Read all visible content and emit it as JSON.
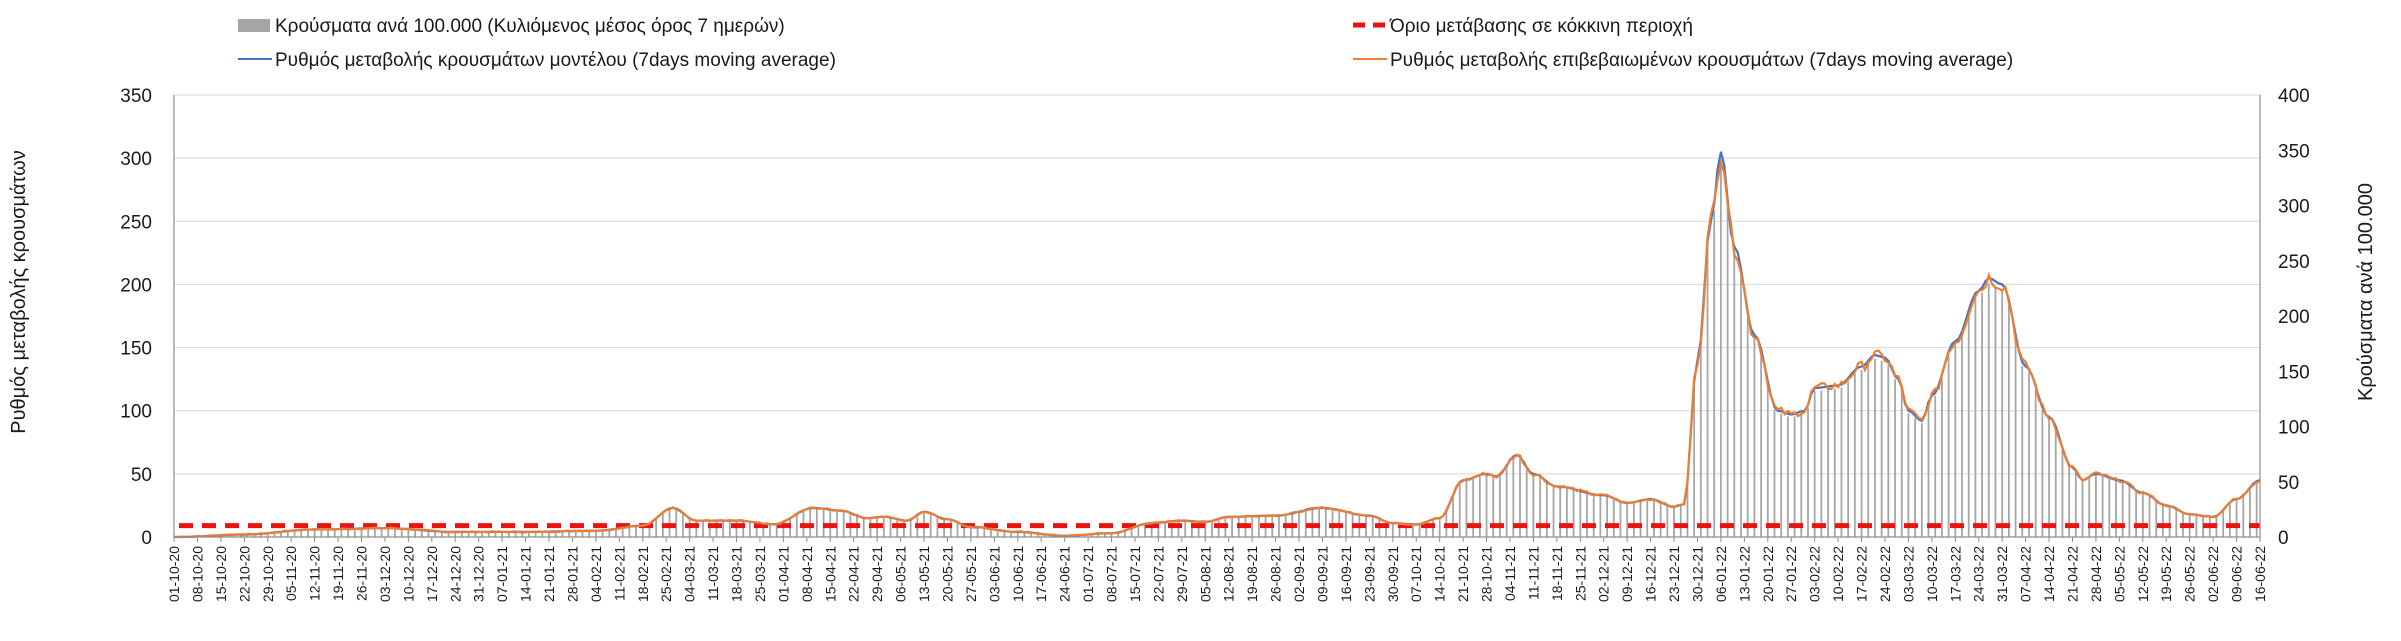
{
  "chart_data": {
    "type": "bar+line",
    "legend": {
      "bars": "Κρούσματα ανά 100.000 (Κυλιόμενος μέσος όρος 7 ημερών)",
      "threshold": "Όριο μετάβασης σε κόκκινη περιοχή",
      "model_line": "Ρυθμός μεταβολής κρουσμάτων μοντέλου (7days moving average)",
      "confirmed_line": "Ρυθμός μεταβολής επιβεβαιωμένων κρουσμάτων (7days moving average)"
    },
    "y_left_label": "Ρυθμός μεταβολής κρουσμάτων",
    "y_right_label": "Κρούσματα ανά 100.000",
    "y_left_ticks": [
      "0",
      "50",
      "100",
      "150",
      "200",
      "250",
      "300",
      "350"
    ],
    "y_right_ticks": [
      "0",
      "50",
      "100",
      "150",
      "200",
      "250",
      "300",
      "350",
      "400"
    ],
    "y_left_range": [
      0,
      350
    ],
    "y_right_range": [
      0,
      400
    ],
    "x_start_date": "01-10-20",
    "x_end_date": "16-06-22",
    "x_tick_step_days": 7,
    "threshold_value_left_axis": 9,
    "colors": {
      "bars": "#a6a6a6",
      "threshold": "#ee1111",
      "model_line": "#4472c4",
      "confirmed_line": "#ed7d31",
      "grid": "#d9d9d9"
    },
    "series_left_axis_keypoints": [
      [
        "01-10-20",
        0
      ],
      [
        "22-10-20",
        2
      ],
      [
        "12-11-20",
        6
      ],
      [
        "03-12-20",
        7
      ],
      [
        "24-12-20",
        4
      ],
      [
        "14-01-21",
        4
      ],
      [
        "04-02-21",
        5
      ],
      [
        "18-02-21",
        9
      ],
      [
        "27-02-21",
        23
      ],
      [
        "06-03-21",
        13
      ],
      [
        "18-03-21",
        13
      ],
      [
        "29-03-21",
        10
      ],
      [
        "10-04-21",
        23
      ],
      [
        "18-04-21",
        21
      ],
      [
        "26-04-21",
        15
      ],
      [
        "01-05-21",
        16
      ],
      [
        "08-05-21",
        13
      ],
      [
        "13-05-21",
        20
      ],
      [
        "20-05-21",
        14
      ],
      [
        "27-05-21",
        8
      ],
      [
        "10-06-21",
        4
      ],
      [
        "24-06-21",
        1
      ],
      [
        "08-07-21",
        3
      ],
      [
        "20-07-21",
        11
      ],
      [
        "29-07-21",
        13
      ],
      [
        "05-08-21",
        12
      ],
      [
        "12-08-21",
        16
      ],
      [
        "26-08-21",
        17
      ],
      [
        "09-09-21",
        23
      ],
      [
        "23-09-21",
        17
      ],
      [
        "30-09-21",
        11
      ],
      [
        "07-10-21",
        10
      ],
      [
        "14-10-21",
        15
      ],
      [
        "21-10-21",
        45
      ],
      [
        "28-10-21",
        50
      ],
      [
        "31-10-21",
        48
      ],
      [
        "06-11-21",
        65
      ],
      [
        "11-11-21",
        50
      ],
      [
        "18-11-21",
        40
      ],
      [
        "02-12-21",
        33
      ],
      [
        "09-12-21",
        27
      ],
      [
        "16-12-21",
        30
      ],
      [
        "23-12-21",
        24
      ],
      [
        "26-12-21",
        26
      ],
      [
        "30-12-21",
        140
      ],
      [
        "03-01-22",
        250
      ],
      [
        "06-01-22",
        305
      ],
      [
        "10-01-22",
        230
      ],
      [
        "16-01-22",
        160
      ],
      [
        "23-01-22",
        100
      ],
      [
        "27-01-22",
        97
      ],
      [
        "31-01-22",
        100
      ],
      [
        "03-02-22",
        118
      ],
      [
        "10-02-22",
        120
      ],
      [
        "17-02-22",
        135
      ],
      [
        "21-02-22",
        144
      ],
      [
        "24-02-22",
        142
      ],
      [
        "28-02-22",
        125
      ],
      [
        "03-03-22",
        100
      ],
      [
        "07-03-22",
        92
      ],
      [
        "10-03-22",
        112
      ],
      [
        "17-03-22",
        155
      ],
      [
        "24-03-22",
        195
      ],
      [
        "27-03-22",
        205
      ],
      [
        "31-03-22",
        200
      ],
      [
        "07-04-22",
        135
      ],
      [
        "14-04-22",
        95
      ],
      [
        "21-04-22",
        55
      ],
      [
        "24-04-22",
        45
      ],
      [
        "28-04-22",
        50
      ],
      [
        "05-05-22",
        45
      ],
      [
        "12-05-22",
        35
      ],
      [
        "19-05-22",
        25
      ],
      [
        "26-05-22",
        18
      ],
      [
        "02-06-22",
        16
      ],
      [
        "09-06-22",
        30
      ],
      [
        "16-06-22",
        45
      ]
    ]
  }
}
